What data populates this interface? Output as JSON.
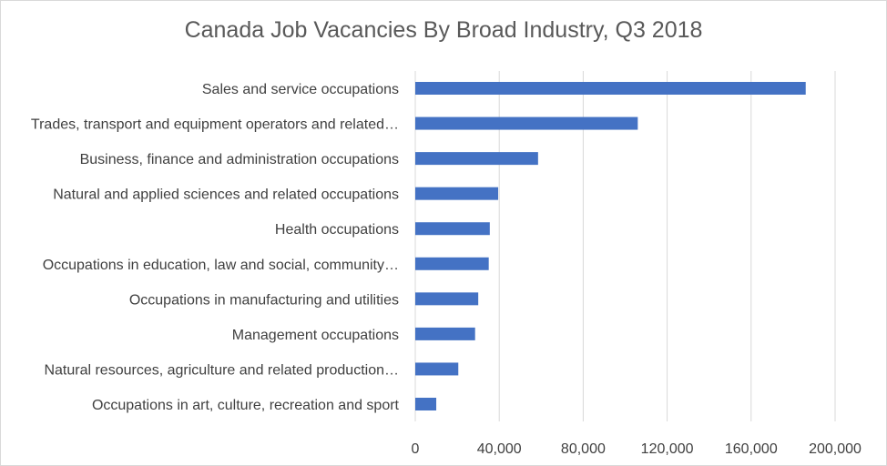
{
  "chart_data": {
    "type": "bar",
    "orientation": "horizontal",
    "title": "Canada Job Vacancies By Broad Industry, Q3 2018",
    "xlabel": "",
    "ylabel": "",
    "categories": [
      "Sales and service occupations",
      "Trades, transport and equipment operators and related…",
      "Business, finance and administration occupations",
      "Natural and applied sciences and related occupations",
      "Health occupations",
      "Occupations in education, law and social, community…",
      "Occupations in manufacturing and utilities",
      "Management occupations",
      "Natural resources, agriculture and related production…",
      "Occupations in art, culture, recreation and sport"
    ],
    "values": [
      186000,
      106000,
      58500,
      39500,
      35500,
      35000,
      30000,
      28500,
      20500,
      10000
    ],
    "xlim": [
      0,
      200000
    ],
    "x_ticks": [
      0,
      40000,
      80000,
      120000,
      160000,
      200000
    ],
    "x_tick_labels": [
      "0",
      "40,000",
      "80,000",
      "120,000",
      "160,000",
      "200,000"
    ],
    "grid": "vertical",
    "legend": "none",
    "bar_color": "#4472c4",
    "grid_color": "#d9d9d9"
  }
}
